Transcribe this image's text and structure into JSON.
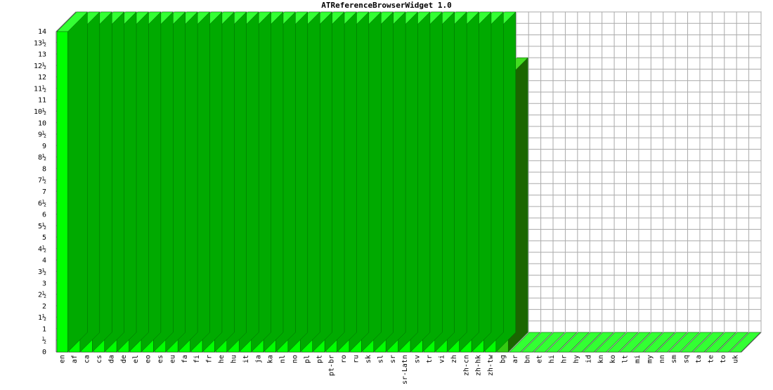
{
  "chart_data": {
    "type": "bar",
    "title": "ATReferenceBrowserWidget 1.0",
    "categories": [
      "en",
      "af",
      "ca",
      "cs",
      "da",
      "de",
      "el",
      "eo",
      "es",
      "eu",
      "fa",
      "fi",
      "fr",
      "he",
      "hu",
      "it",
      "ja",
      "ka",
      "nl",
      "no",
      "pl",
      "pt",
      "pt-br",
      "ro",
      "ru",
      "sk",
      "sl",
      "sr",
      "sr-Latn",
      "sv",
      "tr",
      "vi",
      "zh",
      "zh-cn",
      "zh-hk",
      "zh-tw",
      "bg",
      "ar",
      "bn",
      "et",
      "hi",
      "hr",
      "hy",
      "id",
      "kn",
      "ko",
      "lt",
      "mi",
      "my",
      "nn",
      "sm",
      "sq",
      "ta",
      "te",
      "to",
      "uk"
    ],
    "values": [
      14,
      14,
      14,
      14,
      14,
      14,
      14,
      14,
      14,
      14,
      14,
      14,
      14,
      14,
      14,
      14,
      14,
      14,
      14,
      14,
      14,
      14,
      14,
      14,
      14,
      14,
      14,
      14,
      14,
      14,
      14,
      14,
      14,
      14,
      14,
      14,
      12,
      0,
      0,
      0,
      0,
      0,
      0,
      0,
      0,
      0,
      0,
      0,
      0,
      0,
      0,
      0,
      0,
      0,
      0,
      0
    ],
    "yticks": [
      "0",
      "½",
      "1",
      "1½",
      "2",
      "2½",
      "3",
      "3½",
      "4",
      "4½",
      "5",
      "5½",
      "6",
      "6½",
      "7",
      "7½",
      "8",
      "8½",
      "9",
      "9½",
      "10",
      "10½",
      "11",
      "11½",
      "12",
      "12½",
      "13",
      "13½",
      "14"
    ],
    "ylim": [
      0,
      14
    ],
    "grid": true,
    "colors": {
      "full_front": "#00ff00",
      "full_top": "#33ff33",
      "full_side": "#00aa00",
      "partial_front": "#33cc11",
      "partial_top": "#44dd22",
      "partial_side": "#1a6600",
      "grid": "#aaaaaa"
    }
  }
}
